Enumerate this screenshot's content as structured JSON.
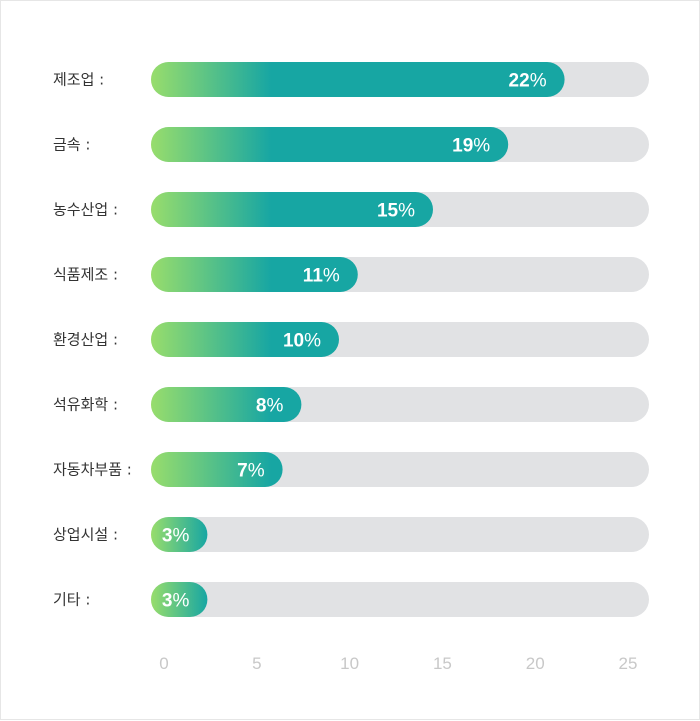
{
  "chart_data": {
    "type": "bar",
    "orientation": "horizontal",
    "categories": [
      "제조업 :",
      "금속 :",
      "농수산업 :",
      "식품제조 :",
      "환경산업 :",
      "석유화학 :",
      "자동차부품 :",
      "상업시설 :",
      "기타 :"
    ],
    "values": [
      22,
      19,
      15,
      11,
      10,
      8,
      7,
      3,
      3
    ],
    "value_suffix": "%",
    "xlim": [
      0,
      25
    ],
    "xticks": [
      "0",
      "5",
      "10",
      "15",
      "20",
      "25"
    ],
    "title": "",
    "xlabel": "",
    "ylabel": "",
    "grid": false,
    "colors": {
      "track": "#e1e2e4",
      "gradient_start": "#98dd6c",
      "gradient_end": "#17a6a3",
      "label": "#333333",
      "value_text": "#ffffff",
      "tick": "#c8c8c8"
    }
  }
}
